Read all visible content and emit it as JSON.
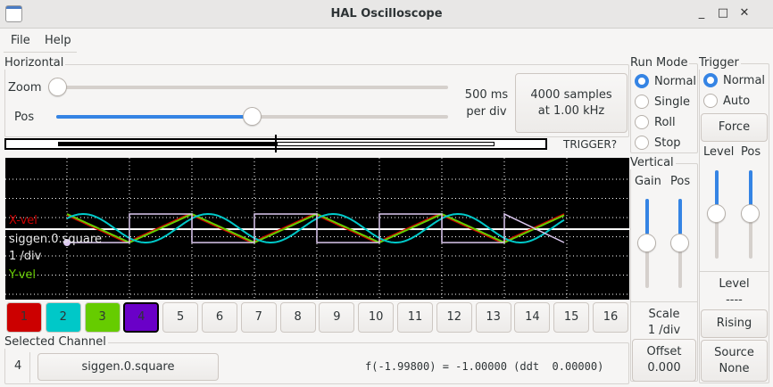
{
  "window": {
    "title": "HAL Oscilloscope",
    "controls": [
      "minimize-icon",
      "maximize-icon",
      "close-icon"
    ]
  },
  "menu": {
    "items": [
      "File",
      "Help"
    ]
  },
  "horizontal": {
    "label": "Horizontal",
    "zoom_label": "Zoom",
    "pos_label": "Pos",
    "zoom_value": 0,
    "pos_value": 0.5,
    "rate_line1": "500 ms",
    "rate_line2": "per div",
    "samples_line1": "4000 samples",
    "samples_line2": "at 1.00 kHz",
    "trigger_status": "TRIGGER?"
  },
  "run_mode": {
    "label": "Run Mode",
    "options": [
      "Normal",
      "Single",
      "Roll",
      "Stop"
    ],
    "selected": "Normal"
  },
  "trigger": {
    "label": "Trigger",
    "options": [
      "Normal",
      "Auto"
    ],
    "selected": "Normal",
    "force_label": "Force",
    "level_label": "Level",
    "pos_label": "Pos",
    "level_value": 0.5,
    "pos_value": 0.5,
    "level_title": "Level",
    "level_readout": "----",
    "edge_label": "Rising",
    "source_label": "Source",
    "source_value": "None"
  },
  "vertical": {
    "label": "Vertical",
    "gain_label": "Gain",
    "pos_label": "Pos",
    "gain_value": 0.5,
    "pos_value": 0.5,
    "scale_label": "Scale",
    "scale_value": "1 /div",
    "offset_label": "Offset",
    "offset_value": "0.000"
  },
  "scope": {
    "labels": {
      "ch1": "X-vel",
      "ch3": "Y-vel",
      "ch4": "siggen.0.square",
      "scale": "1 /div"
    },
    "colors": {
      "ch1": "#cc0000",
      "ch2": "#00c8c8",
      "ch3": "#66cc00",
      "ch4": "#dcc8f0",
      "grid": "#ffffff",
      "background": "#000000"
    }
  },
  "channels": [
    {
      "label": "1",
      "color": "#cc0000"
    },
    {
      "label": "2",
      "color": "#00c8c8"
    },
    {
      "label": "3",
      "color": "#66cc00"
    },
    {
      "label": "4",
      "color": "#6a00c8",
      "selected": true
    },
    {
      "label": "5"
    },
    {
      "label": "6"
    },
    {
      "label": "7"
    },
    {
      "label": "8"
    },
    {
      "label": "9"
    },
    {
      "label": "10"
    },
    {
      "label": "11"
    },
    {
      "label": "12"
    },
    {
      "label": "13"
    },
    {
      "label": "14"
    },
    {
      "label": "15"
    },
    {
      "label": "16"
    }
  ],
  "selected_channel": {
    "label": "Selected Channel",
    "number": "4",
    "name": "siggen.0.square",
    "readout": "f(-1.99800) = -1.00000 (ddt  0.00000)"
  }
}
